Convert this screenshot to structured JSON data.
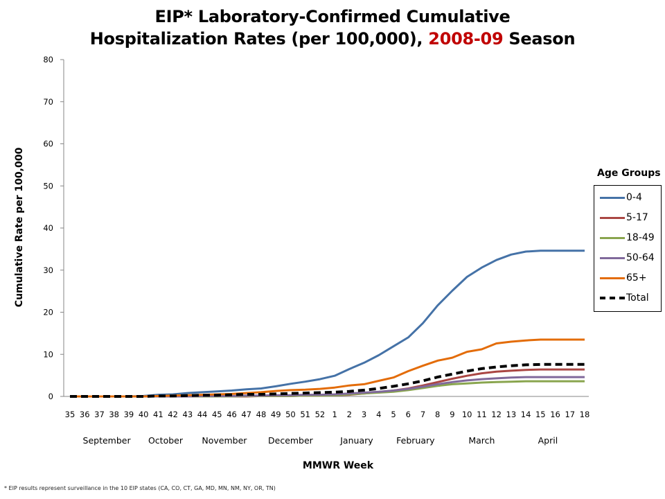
{
  "title": {
    "line1": "EIP* Laboratory-Confirmed Cumulative",
    "line2_prefix": "Hospitalization Rates (per 100,000), ",
    "line2_highlight": "2008-09",
    "line2_suffix": " Season",
    "highlight_color": "#c00000"
  },
  "footnote": "* EIP results represent surveillance in the 10 EIP states (CA, CO, CT, GA, MD, MN, NM, NY, OR, TN)",
  "chart_data": {
    "type": "line",
    "title": "EIP* Laboratory-Confirmed Cumulative Hospitalization Rates (per 100,000), 2008-09 Season",
    "xlabel": "MMWR Week",
    "ylabel": "Cumulative Rate per 100,000",
    "ylim": [
      0,
      80
    ],
    "yticks": [
      0,
      10,
      20,
      30,
      40,
      50,
      60,
      70,
      80
    ],
    "grid": false,
    "legend_title": "Age Groups",
    "legend_position": "right",
    "x": [
      "35",
      "36",
      "37",
      "38",
      "39",
      "40",
      "41",
      "42",
      "43",
      "44",
      "45",
      "46",
      "47",
      "48",
      "49",
      "50",
      "51",
      "52",
      "1",
      "2",
      "3",
      "4",
      "5",
      "6",
      "7",
      "8",
      "9",
      "10",
      "11",
      "12",
      "13",
      "14",
      "15",
      "16",
      "17",
      "18"
    ],
    "months": [
      {
        "label": "September",
        "center_week_index": 2.5
      },
      {
        "label": "October",
        "center_week_index": 6.5
      },
      {
        "label": "November",
        "center_week_index": 10.5
      },
      {
        "label": "December",
        "center_week_index": 15
      },
      {
        "label": "January",
        "center_week_index": 19.5
      },
      {
        "label": "February",
        "center_week_index": 23.5
      },
      {
        "label": "March",
        "center_week_index": 28
      },
      {
        "label": "April",
        "center_week_index": 32.5
      }
    ],
    "series": [
      {
        "name": "0-4",
        "color": "#4572a7",
        "dash": false,
        "values": [
          0,
          0,
          0,
          0,
          0,
          0.1,
          0.4,
          0.5,
          0.8,
          1.0,
          1.2,
          1.4,
          1.7,
          1.9,
          2.4,
          3.0,
          3.5,
          4.1,
          4.9,
          6.5,
          8.0,
          9.8,
          11.9,
          14.0,
          17.4,
          21.6,
          25.1,
          28.4,
          30.6,
          32.4,
          33.7,
          34.4,
          34.6,
          34.6,
          34.6,
          34.6
        ]
      },
      {
        "name": "5-17",
        "color": "#aa4643",
        "dash": false,
        "values": [
          0,
          0,
          0,
          0,
          0,
          0,
          0,
          0,
          0,
          0,
          0,
          0,
          0,
          0.1,
          0.1,
          0.1,
          0.2,
          0.2,
          0.3,
          0.4,
          0.7,
          1.0,
          1.4,
          1.9,
          2.6,
          3.4,
          4.2,
          4.9,
          5.5,
          5.9,
          6.1,
          6.3,
          6.4,
          6.4,
          6.4,
          6.4
        ]
      },
      {
        "name": "18-49",
        "color": "#89a54e",
        "dash": false,
        "values": [
          0,
          0,
          0,
          0,
          0,
          0,
          0,
          0,
          0,
          0,
          0,
          0,
          0.1,
          0.1,
          0.1,
          0.1,
          0.2,
          0.2,
          0.3,
          0.5,
          0.7,
          0.9,
          1.1,
          1.5,
          2.0,
          2.5,
          2.9,
          3.1,
          3.3,
          3.4,
          3.5,
          3.6,
          3.6,
          3.6,
          3.6,
          3.6
        ]
      },
      {
        "name": "50-64",
        "color": "#80699b",
        "dash": false,
        "values": [
          0,
          0,
          0,
          0,
          0,
          0,
          0,
          0,
          0,
          0.1,
          0.1,
          0.1,
          0.2,
          0.2,
          0.3,
          0.3,
          0.4,
          0.4,
          0.5,
          0.7,
          0.9,
          1.1,
          1.4,
          1.8,
          2.3,
          2.9,
          3.4,
          3.8,
          4.1,
          4.3,
          4.5,
          4.6,
          4.6,
          4.6,
          4.6,
          4.6
        ]
      },
      {
        "name": "65+",
        "color": "#e36c09",
        "dash": false,
        "values": [
          0,
          0,
          0,
          0,
          0,
          0,
          0.1,
          0.2,
          0.3,
          0.4,
          0.5,
          0.6,
          0.8,
          1.0,
          1.3,
          1.5,
          1.6,
          1.8,
          2.1,
          2.6,
          2.9,
          3.7,
          4.5,
          6.0,
          7.3,
          8.5,
          9.2,
          10.6,
          11.2,
          12.6,
          13.0,
          13.3,
          13.5,
          13.5,
          13.5,
          13.5
        ]
      },
      {
        "name": "Total",
        "color": "#000000",
        "dash": true,
        "values": [
          0,
          0,
          0,
          0,
          0,
          0,
          0.1,
          0.1,
          0.2,
          0.3,
          0.3,
          0.4,
          0.5,
          0.5,
          0.6,
          0.7,
          0.8,
          0.9,
          1.0,
          1.2,
          1.5,
          1.9,
          2.4,
          3.0,
          3.7,
          4.6,
          5.3,
          6.0,
          6.6,
          7.0,
          7.3,
          7.5,
          7.6,
          7.6,
          7.6,
          7.6
        ]
      }
    ]
  }
}
